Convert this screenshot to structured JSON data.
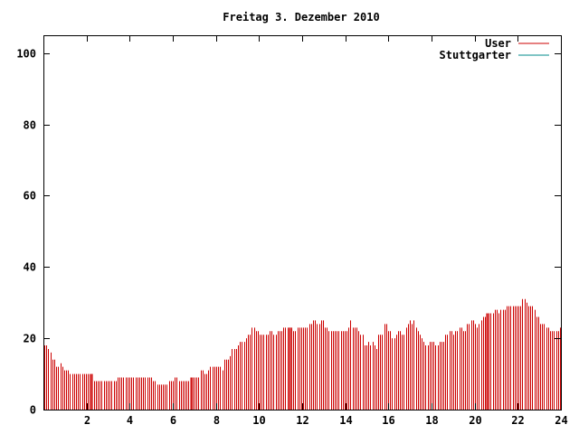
{
  "chart_data": {
    "type": "bar",
    "title": "Freitag 3. Dezember 2010",
    "xlabel": "",
    "ylabel": "",
    "xlim": [
      0,
      24
    ],
    "ylim": [
      0,
      105
    ],
    "x_ticks": [
      2,
      4,
      6,
      8,
      10,
      12,
      14,
      16,
      18,
      20,
      22,
      24
    ],
    "y_ticks": [
      0,
      20,
      40,
      60,
      80,
      100
    ],
    "x_tick_labels": [
      "2",
      "4",
      "6",
      "8",
      "10",
      "12",
      "14",
      "16",
      "18",
      "20",
      "22",
      "24"
    ],
    "y_tick_labels": [
      "0",
      "20",
      "40",
      "60",
      "80",
      "100"
    ],
    "grid": false,
    "legend_position": "top-right",
    "series": [
      {
        "name": "User",
        "color": "#cc0000",
        "style": "impulses",
        "values": [
          18,
          18,
          17,
          16,
          14,
          14,
          12,
          12,
          13,
          12,
          11,
          11,
          11,
          10,
          10,
          10,
          10,
          10,
          10,
          10,
          10,
          10,
          10,
          10,
          10,
          8,
          8,
          8,
          8,
          8,
          8,
          8,
          8,
          8,
          8,
          8,
          8,
          9,
          9,
          9,
          9,
          9,
          9,
          9,
          9,
          9,
          9,
          9,
          9,
          9,
          9,
          9,
          9,
          9,
          9,
          8,
          8,
          7,
          7,
          7,
          7,
          7,
          7,
          8,
          8,
          8,
          9,
          9,
          8,
          8,
          8,
          8,
          8,
          8,
          9,
          9,
          9,
          9,
          9,
          11,
          11,
          10,
          10,
          11,
          12,
          12,
          12,
          12,
          12,
          12,
          11,
          14,
          14,
          14,
          15,
          17,
          17,
          17,
          18,
          19,
          19,
          19,
          20,
          21,
          21,
          23,
          23,
          22,
          22,
          21,
          21,
          21,
          21,
          21,
          22,
          22,
          21,
          21,
          22,
          22,
          22,
          23,
          23,
          23,
          23,
          23,
          22,
          22,
          23,
          23,
          23,
          23,
          23,
          23,
          24,
          24,
          25,
          25,
          24,
          24,
          25,
          25,
          23,
          23,
          22,
          22,
          22,
          22,
          22,
          22,
          22,
          22,
          22,
          22,
          23,
          25,
          23,
          23,
          23,
          22,
          21,
          21,
          18,
          18,
          19,
          18,
          19,
          18,
          17,
          21,
          21,
          21,
          24,
          24,
          22,
          22,
          20,
          20,
          21,
          22,
          22,
          21,
          21,
          23,
          24,
          25,
          24,
          25,
          23,
          22,
          21,
          20,
          19,
          18,
          18,
          19,
          19,
          19,
          18,
          18,
          19,
          19,
          19,
          21,
          21,
          22,
          22,
          21,
          22,
          22,
          23,
          23,
          22,
          22,
          24,
          24,
          25,
          25,
          24,
          23,
          24,
          25,
          26,
          26,
          27,
          27,
          27,
          27,
          28,
          28,
          27,
          28,
          28,
          28,
          29,
          29,
          29,
          29,
          29,
          29,
          29,
          29,
          31,
          31,
          30,
          29,
          29,
          29,
          28,
          26,
          26,
          24,
          24,
          24,
          23,
          23,
          22,
          22,
          22,
          22,
          22,
          23
        ],
        "highlight_indices": [
          24,
          74,
          124,
          224
        ]
      },
      {
        "name": "Stuttgarter",
        "color": "#008b8b",
        "style": "impulses",
        "values": []
      }
    ]
  }
}
